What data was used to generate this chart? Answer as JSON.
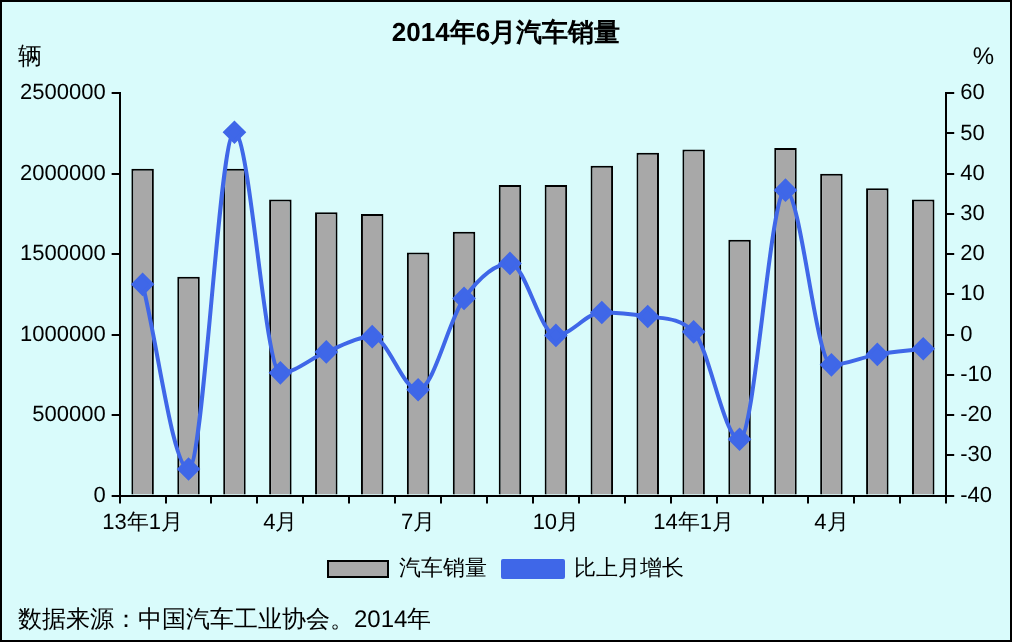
{
  "chart_data": {
    "type": "bar",
    "title": "2014年6月汽车销量",
    "ylabel": "辆",
    "y2label": "%",
    "categories": [
      "13年1月",
      null,
      null,
      "4月",
      null,
      null,
      "7月",
      null,
      null,
      "10月",
      null,
      null,
      "14年1月",
      null,
      null,
      "4月",
      null,
      null
    ],
    "series": [
      {
        "name": "汽车销量",
        "color": "#a8a8a8",
        "values": [
          2030000,
          1360000,
          2030000,
          1840000,
          1760000,
          1750000,
          1510000,
          1640000,
          1930000,
          1930000,
          2050000,
          2130000,
          2150000,
          1590000,
          2160000,
          2000000,
          1910000,
          1840000
        ]
      },
      {
        "name": "比上月增长",
        "type": "line",
        "axis": "y2",
        "color": "#3f67e8",
        "marker": "diamond",
        "values": [
          12.5,
          -33.4,
          50.3,
          -9.5,
          -4.3,
          -0.5,
          -13.7,
          9,
          17.7,
          -0.2,
          5.5,
          4.5,
          0.7,
          -26,
          35.9,
          -7.5,
          -4.9,
          -3.5
        ]
      }
    ],
    "ylim": [
      0,
      2500000
    ],
    "yticks": [
      0,
      500000,
      1000000,
      1500000,
      2000000,
      2500000
    ],
    "y2lim": [
      -40,
      60
    ],
    "y2ticks": [
      -40,
      -30,
      -20,
      -10,
      0,
      10,
      20,
      30,
      40,
      50,
      60
    ],
    "grid": false,
    "legend": "bottom",
    "annotations": [
      "数据来源：中国汽车工业协会。2014年"
    ]
  }
}
